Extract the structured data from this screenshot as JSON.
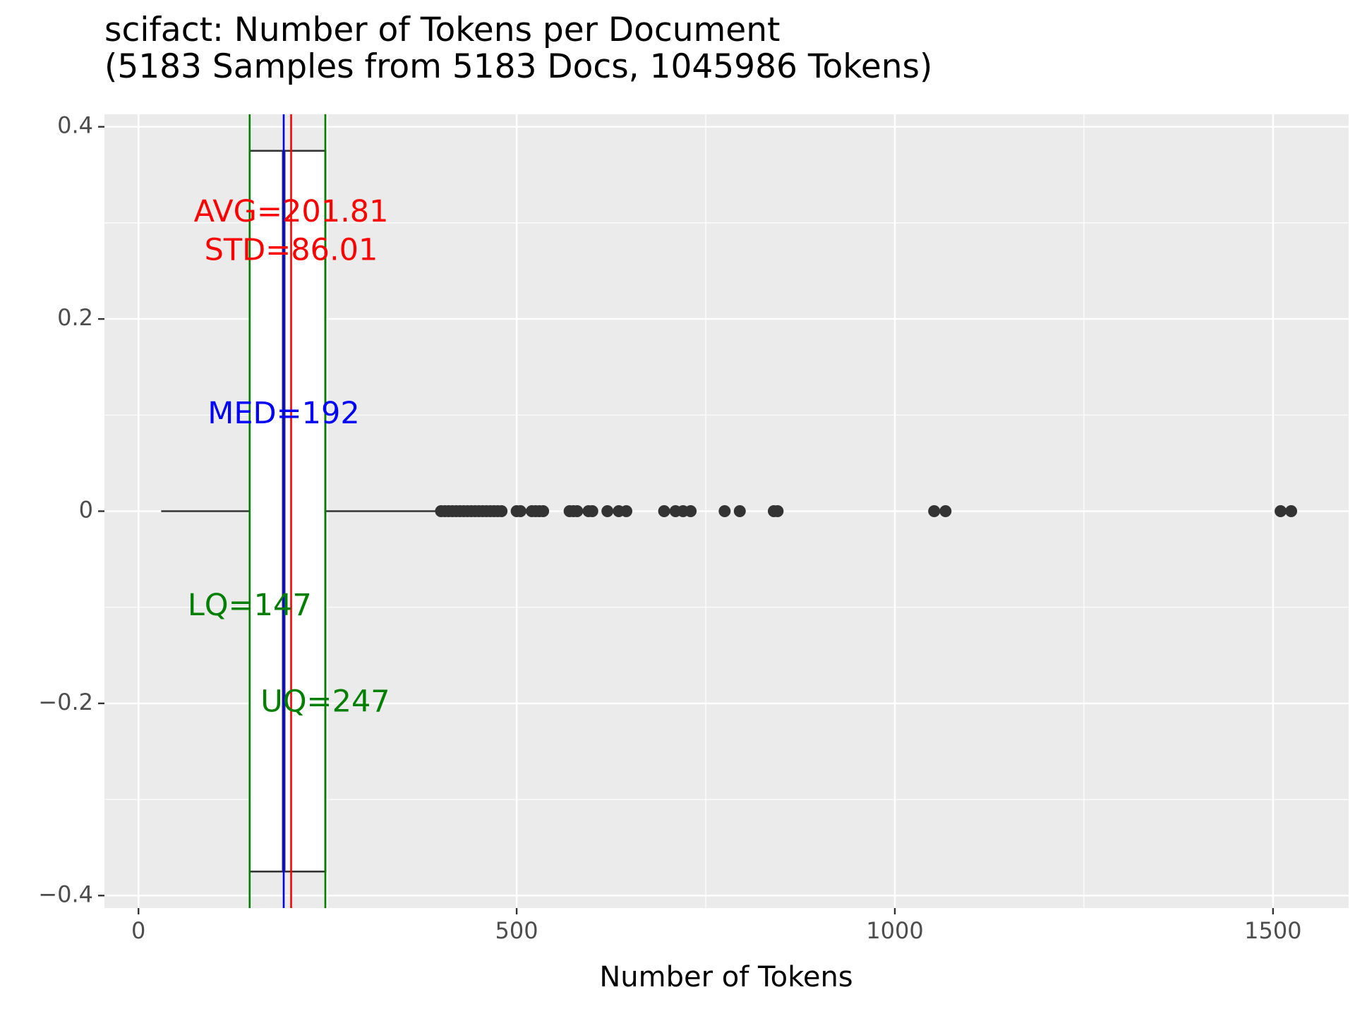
{
  "chart_data": {
    "type": "boxplot",
    "title_line1": "scifact: Number of Tokens per Document",
    "title_line2": "(5183 Samples from 5183 Docs, 1045986 Tokens)",
    "xlabel": "Number of Tokens",
    "ylabel": "",
    "xlim": [
      -45,
      1600
    ],
    "ylim": [
      -0.413,
      0.413
    ],
    "x_ticks": [
      0,
      500,
      1000,
      1500
    ],
    "x_tick_labels": [
      "0",
      "500",
      "1000",
      "1500"
    ],
    "y_ticks": [
      0.4,
      0.2,
      0,
      -0.2,
      -0.4
    ],
    "y_tick_labels": [
      "0.4",
      "0.2",
      "0",
      "−0.2",
      "−0.4"
    ],
    "grid": true,
    "legend": "none",
    "box": {
      "whisker_low": 30,
      "q1": 147,
      "median": 192,
      "q3": 247,
      "whisker_high": 396,
      "half_width": 0.375
    },
    "outliers": [
      400,
      405,
      410,
      415,
      420,
      425,
      430,
      435,
      440,
      445,
      450,
      455,
      460,
      465,
      470,
      475,
      480,
      500,
      505,
      520,
      525,
      530,
      535,
      570,
      575,
      580,
      595,
      600,
      620,
      635,
      645,
      695,
      710,
      720,
      730,
      775,
      795,
      840,
      845,
      1052,
      1067,
      1510,
      1524
    ],
    "reference_lines": [
      {
        "name": "LQ",
        "value": 147,
        "color": "#007f00"
      },
      {
        "name": "UQ",
        "value": 247,
        "color": "#007f00"
      },
      {
        "name": "MED",
        "value": 192,
        "color": "#0000ff"
      },
      {
        "name": "AVG",
        "value": 201.81,
        "color": "#ff0000"
      }
    ],
    "annotations": [
      {
        "text": "AVG=201.81",
        "x": 201.81,
        "y": 0.31,
        "color": "#ff0000"
      },
      {
        "text": "STD=86.01",
        "x": 201.81,
        "y": 0.27,
        "color": "#ff0000"
      },
      {
        "text": "MED=192",
        "x": 192,
        "y": 0.1,
        "color": "#0000ff"
      },
      {
        "text": "LQ=147",
        "x": 147,
        "y": -0.1,
        "color": "#007f00"
      },
      {
        "text": "UQ=247",
        "x": 247,
        "y": -0.2,
        "color": "#007f00"
      }
    ],
    "colors": {
      "panel_bg": "#ebebeb",
      "grid": "#ffffff",
      "box_fill": "#ffffff",
      "box_line": "#333333",
      "points": "#333333",
      "tick_mark": "#333333"
    }
  }
}
